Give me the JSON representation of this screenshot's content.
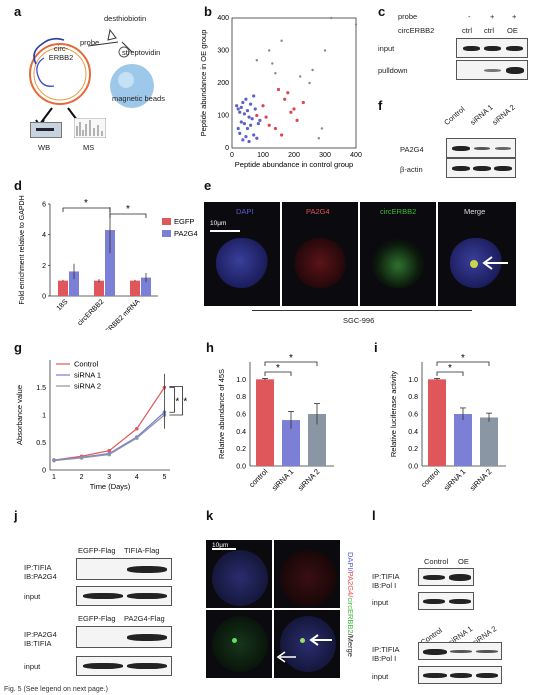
{
  "panels": {
    "a": {
      "label": "a",
      "circ_label": "circ-\nERBB2",
      "desthiobiotin": "desthiobiotin",
      "probe": "probe",
      "streptavidin": "streptovidin",
      "beads": "magnetic beads",
      "wb": "WB",
      "ms": "MS"
    },
    "b": {
      "label": "b",
      "xlabel": "Peptide abundance in control group",
      "ylabel": "Peptide abundance in OE group"
    },
    "c": {
      "label": "c",
      "rows": [
        "probe",
        "circERBB2"
      ],
      "probe_vals": [
        "-",
        "+",
        "+"
      ],
      "circ_vals": [
        "ctrl",
        "ctrl",
        "OE"
      ],
      "blots": [
        "input",
        "pulldown"
      ]
    },
    "d": {
      "label": "d",
      "ylabel": "Fold enrichment relative to GAPDH",
      "legend": [
        "EGFP",
        "PA2G4"
      ],
      "star": "*"
    },
    "e": {
      "label": "e",
      "channels": [
        "DAPI",
        "PA2G4",
        "circERBB2",
        "Merge"
      ],
      "scale": "10μm",
      "cell_line": "SGC-996"
    },
    "f": {
      "label": "f",
      "lanes": [
        "Control",
        "siRNA 1",
        "siRNA 2"
      ],
      "blots": [
        "PA2G4",
        "β-actin"
      ]
    },
    "g": {
      "label": "g",
      "ylabel": "Absorbance value",
      "xlabel": "Time (Days)",
      "legend": [
        "Control",
        "siRNA 1",
        "siRNA 2"
      ],
      "star": "*"
    },
    "h": {
      "label": "h",
      "ylabel": "Relative abundance of 45S",
      "star": "*"
    },
    "i": {
      "label": "i",
      "ylabel": "Relative luciferase activity",
      "star": "*"
    },
    "j": {
      "label": "j",
      "top_lanes": [
        "EGFP-Flag",
        "TIFIA-Flag"
      ],
      "top_rows": [
        "IP:TIFIA\nIB:PA2G4",
        "input"
      ],
      "bottom_lanes": [
        "EGFP-Flag",
        "PA2G4-Flag"
      ],
      "bottom_rows": [
        "IP:PA2G4\nIB:TIFIA",
        "input"
      ]
    },
    "k": {
      "label": "k",
      "scale": "10μm",
      "dapi": "DAPI/",
      "pa2g4": "PA2G4/",
      "circ": "circERBB2",
      "merge": "/Merge"
    },
    "l": {
      "label": "l",
      "top_lanes": [
        "Control",
        "OE"
      ],
      "top_rows": [
        "IP:TIFIA\nIB:Pol I",
        "input"
      ],
      "bottom_lanes": [
        "Control",
        "siRNA 1",
        "siRNA 2"
      ],
      "bottom_rows": [
        "IP:TIFIA\nIB:Pol I",
        "input"
      ]
    }
  },
  "caption": "Fig. 5 (See legend on next page.)",
  "colors": {
    "red": "#e0575b",
    "blue": "#7b7fd6",
    "gray": "#8a96a3"
  },
  "chart_data": [
    {
      "panel": "b",
      "type": "scatter",
      "xlabel": "Peptide abundance in control group",
      "ylabel": "Peptide abundance in OE group",
      "xlim": [
        0,
        400
      ],
      "ylim": [
        0,
        400
      ],
      "xticks": [
        0,
        100,
        200,
        300,
        400
      ],
      "yticks": [
        0,
        100,
        200,
        300,
        400
      ],
      "red_points": [
        [
          80,
          100
        ],
        [
          110,
          95
        ],
        [
          150,
          180
        ],
        [
          180,
          170
        ],
        [
          190,
          110
        ],
        [
          200,
          120
        ],
        [
          210,
          85
        ],
        [
          140,
          60
        ],
        [
          120,
          70
        ],
        [
          160,
          40
        ],
        [
          100,
          130
        ],
        [
          230,
          140
        ],
        [
          170,
          150
        ]
      ],
      "blue_points": [
        [
          15,
          130
        ],
        [
          20,
          120
        ],
        [
          25,
          110
        ],
        [
          30,
          125
        ],
        [
          35,
          140
        ],
        [
          40,
          105
        ],
        [
          45,
          150
        ],
        [
          50,
          115
        ],
        [
          55,
          95
        ],
        [
          60,
          135
        ],
        [
          65,
          90
        ],
        [
          70,
          160
        ],
        [
          75,
          120
        ],
        [
          30,
          80
        ],
        [
          40,
          75
        ],
        [
          50,
          60
        ],
        [
          20,
          60
        ],
        [
          60,
          70
        ],
        [
          90,
          85
        ],
        [
          85,
          75
        ],
        [
          25,
          45
        ],
        [
          45,
          35
        ],
        [
          35,
          25
        ],
        [
          55,
          20
        ],
        [
          70,
          40
        ],
        [
          80,
          30
        ]
      ],
      "gray_points": [
        [
          320,
          400
        ],
        [
          400,
          380
        ],
        [
          300,
          300
        ],
        [
          160,
          330
        ],
        [
          120,
          300
        ],
        [
          80,
          270
        ],
        [
          130,
          260
        ],
        [
          290,
          60
        ],
        [
          280,
          30
        ],
        [
          220,
          220
        ],
        [
          250,
          200
        ],
        [
          260,
          240
        ],
        [
          140,
          230
        ]
      ]
    },
    {
      "panel": "d",
      "type": "bar",
      "categories": [
        "18S",
        "circERBB2",
        "ERBB2 mRNA"
      ],
      "ylim": [
        0,
        6
      ],
      "yticks": [
        0,
        2,
        4,
        6
      ],
      "series": [
        {
          "name": "EGFP",
          "values": [
            1,
            1,
            1
          ],
          "err": [
            0.05,
            0.1,
            0.05
          ]
        },
        {
          "name": "PA2G4",
          "values": [
            1.6,
            4.3,
            1.2
          ],
          "err": [
            0.5,
            1.5,
            0.3
          ]
        }
      ]
    },
    {
      "panel": "g",
      "type": "line",
      "xlabel": "Time (Days)",
      "ylabel": "Absorbance value",
      "x": [
        1,
        2,
        3,
        4,
        5
      ],
      "ylim": [
        0,
        2.0
      ],
      "yticks": [
        0,
        0.5,
        1.0,
        1.5
      ],
      "series": [
        {
          "name": "Control",
          "values": [
            0.18,
            0.25,
            0.35,
            0.75,
            1.5
          ]
        },
        {
          "name": "siRNA 1",
          "values": [
            0.18,
            0.23,
            0.3,
            0.6,
            1.05
          ]
        },
        {
          "name": "siRNA 2",
          "values": [
            0.17,
            0.22,
            0.28,
            0.58,
            1.0
          ]
        }
      ]
    },
    {
      "panel": "h",
      "type": "bar",
      "categories": [
        "control",
        "siRNA 1",
        "siRNA 2"
      ],
      "ylim": [
        0,
        1.2
      ],
      "yticks": [
        0,
        0.2,
        0.4,
        0.6,
        0.8,
        1.0
      ],
      "values": [
        1.0,
        0.53,
        0.6
      ],
      "err": [
        0.01,
        0.1,
        0.12
      ]
    },
    {
      "panel": "i",
      "type": "bar",
      "categories": [
        "control",
        "siRNA 1",
        "siRNA 2"
      ],
      "ylim": [
        0,
        1.2
      ],
      "yticks": [
        0,
        0.2,
        0.4,
        0.6,
        0.8,
        1.0
      ],
      "values": [
        1.0,
        0.6,
        0.56
      ],
      "err": [
        0.01,
        0.07,
        0.05
      ]
    }
  ]
}
